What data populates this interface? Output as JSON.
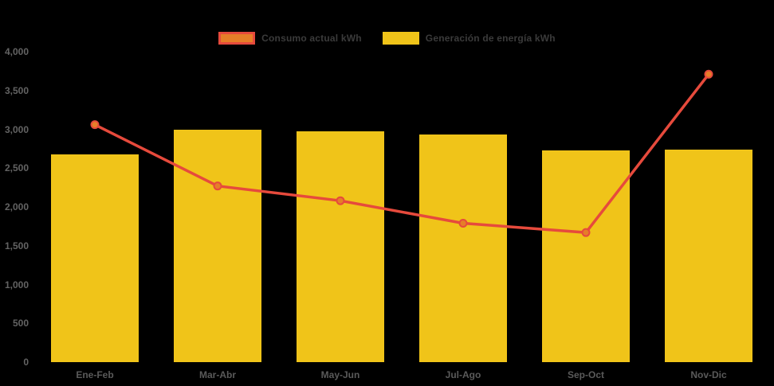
{
  "chart_data": {
    "type": "bar",
    "subtype": "bar-with-line-overlay",
    "title": "",
    "xlabel": "",
    "ylabel": "",
    "categories": [
      "Ene-Feb",
      "Mar-Abr",
      "May-Jun",
      "Jul-Ago",
      "Sep-Oct",
      "Nov-Dic"
    ],
    "series": [
      {
        "name": "Consumo actual kWh",
        "type": "line",
        "values": [
          3060,
          2270,
          2080,
          1790,
          1670,
          3710
        ],
        "color": "#e64a3c",
        "marker_fill": "#e67e28",
        "marker_border": "#e64a3c"
      },
      {
        "name": "Generación de energía kWh",
        "type": "bar",
        "values": [
          2680,
          3000,
          2970,
          2930,
          2730,
          2740
        ],
        "color": "#f0c419"
      }
    ],
    "ylim": [
      0,
      4000
    ],
    "ytick_step": 500,
    "ytick_labels": [
      "0",
      "500",
      "1,000",
      "1,500",
      "2,000",
      "2,500",
      "3,000",
      "3,500",
      "4,000"
    ],
    "grid": false,
    "legend_position": "top",
    "background_color": "#000000",
    "axis_text_color": "#5a5a5a",
    "legend_text_color": "#3b3b3b"
  },
  "legend": {
    "items": [
      {
        "label": "Consumo actual kWh",
        "swatch_fill": "#e67e28",
        "swatch_border": "#e64a3c"
      },
      {
        "label": "Generación de energía kWh",
        "swatch_fill": "#f0c419",
        "swatch_border": "#f0c419"
      }
    ]
  }
}
